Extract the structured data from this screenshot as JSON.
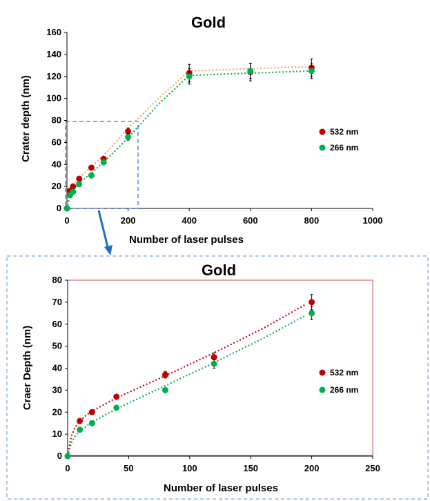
{
  "chart_data": [
    {
      "type": "scatter",
      "title": "Gold",
      "xlabel": "Number of laser pulses",
      "ylabel": "Crater depth (nm)",
      "xlim": [
        0,
        1000
      ],
      "ylim": [
        0,
        160
      ],
      "xticks": [
        0,
        200,
        400,
        600,
        800,
        1000
      ],
      "yticks": [
        0,
        20,
        40,
        60,
        80,
        100,
        120,
        140,
        160
      ],
      "grid": false,
      "legend_position": "right",
      "series": [
        {
          "name": "532 nm",
          "color": "#c00000",
          "x": [
            0,
            10,
            20,
            40,
            80,
            120,
            200,
            400,
            600,
            800
          ],
          "y": [
            0,
            16,
            20,
            27,
            37,
            45,
            70,
            123,
            124,
            128
          ],
          "error": [
            0,
            0,
            0,
            0,
            0,
            0,
            3,
            8,
            8,
            8
          ],
          "trendline": {
            "color": "#f4a460",
            "x": [
              0,
              10,
              20,
              40,
              80,
              120,
              200,
              300,
              400,
              600,
              800
            ],
            "y": [
              0,
              17,
              21,
              28,
              38,
              48,
              73,
              100,
              125,
              127,
              129
            ]
          }
        },
        {
          "name": "266 nm",
          "color": "#00b050",
          "x": [
            0,
            10,
            20,
            40,
            80,
            120,
            200,
            400,
            600,
            800
          ],
          "y": [
            0,
            12,
            15,
            22,
            30,
            42,
            65,
            120,
            125,
            125
          ],
          "error": [
            0,
            0,
            0,
            0,
            0,
            0,
            3,
            7,
            7,
            7
          ],
          "trendline": {
            "color": "#00b050",
            "x": [
              0,
              10,
              20,
              40,
              80,
              120,
              200,
              300,
              400,
              600,
              800
            ],
            "y": [
              0,
              11,
              16,
              23,
              32,
              42,
              64,
              95,
              121,
              123,
              125
            ]
          }
        }
      ]
    },
    {
      "type": "scatter",
      "title": "Gold",
      "xlabel": "Number of laser pulses",
      "ylabel": "Craer Depth (nm)",
      "xlim": [
        0,
        250
      ],
      "ylim": [
        0,
        80
      ],
      "xticks": [
        0,
        50,
        100,
        150,
        200,
        250
      ],
      "yticks": [
        0,
        10,
        20,
        30,
        40,
        50,
        60,
        70,
        80
      ],
      "grid": false,
      "legend_position": "right",
      "series": [
        {
          "name": "532 nm",
          "color": "#c00000",
          "x": [
            0,
            10,
            20,
            40,
            80,
            120,
            200
          ],
          "y": [
            0,
            16,
            20,
            27,
            37,
            45,
            70
          ],
          "error": [
            0,
            0,
            0,
            0,
            1.5,
            2,
            3.5
          ],
          "trendline": {
            "color": "#c00000",
            "x": [
              0,
              3,
              6,
              10,
              15,
              20,
              30,
              40,
              80,
              120,
              160,
              195
            ],
            "y": [
              0,
              9,
              13,
              16,
              18.5,
              20.5,
              23.5,
              26.5,
              36.5,
              47,
              58,
              69
            ]
          }
        },
        {
          "name": "266 nm",
          "color": "#00b050",
          "x": [
            0,
            10,
            20,
            40,
            80,
            120,
            200
          ],
          "y": [
            0,
            12,
            15,
            22,
            30,
            42,
            65
          ],
          "error": [
            0,
            0,
            0,
            0,
            1,
            2,
            3
          ],
          "trendline": {
            "color": "#00b050",
            "x": [
              0,
              3,
              6,
              10,
              15,
              20,
              30,
              40,
              80,
              120,
              160,
              195
            ],
            "y": [
              0,
              6,
              9,
              11.5,
              13.5,
              15.5,
              18.5,
              21.5,
              32,
              42.5,
              53.5,
              64
            ]
          }
        }
      ]
    }
  ]
}
